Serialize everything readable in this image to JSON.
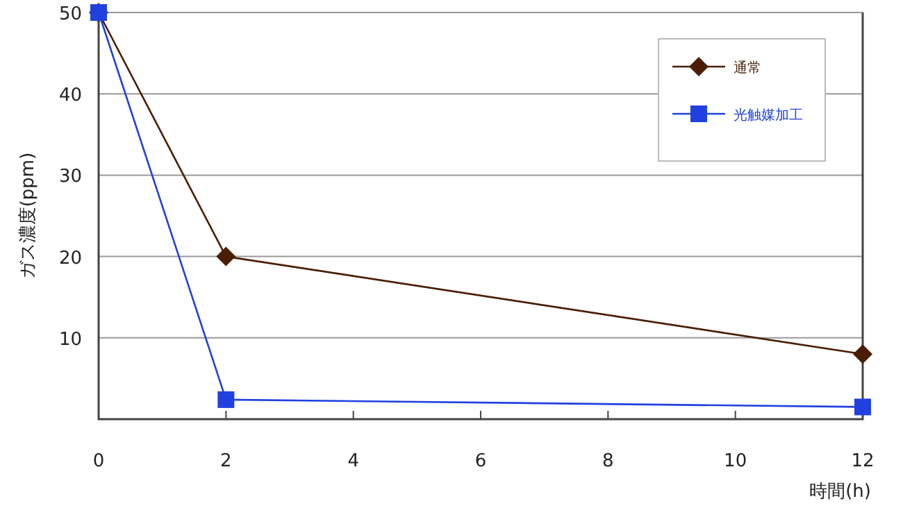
{
  "chart_data": {
    "type": "line",
    "xlabel": "時間(h)",
    "ylabel": "ガス濃度(ppm)",
    "x": [
      0,
      2,
      12
    ],
    "series": [
      {
        "name": "通常",
        "color": "#4a1e05",
        "marker": "diamond",
        "values": [
          50,
          20,
          8
        ]
      },
      {
        "name": "光触媒加工",
        "color": "#2040e0",
        "marker": "square",
        "values": [
          50,
          2.4,
          1.5
        ]
      }
    ],
    "xlim": [
      0,
      12
    ],
    "ylim": [
      0,
      50
    ],
    "xticks": [
      0,
      2,
      4,
      6,
      8,
      10,
      12
    ],
    "yticks": [
      10,
      20,
      30,
      40,
      50
    ],
    "grid": "y",
    "legend": "top right"
  }
}
